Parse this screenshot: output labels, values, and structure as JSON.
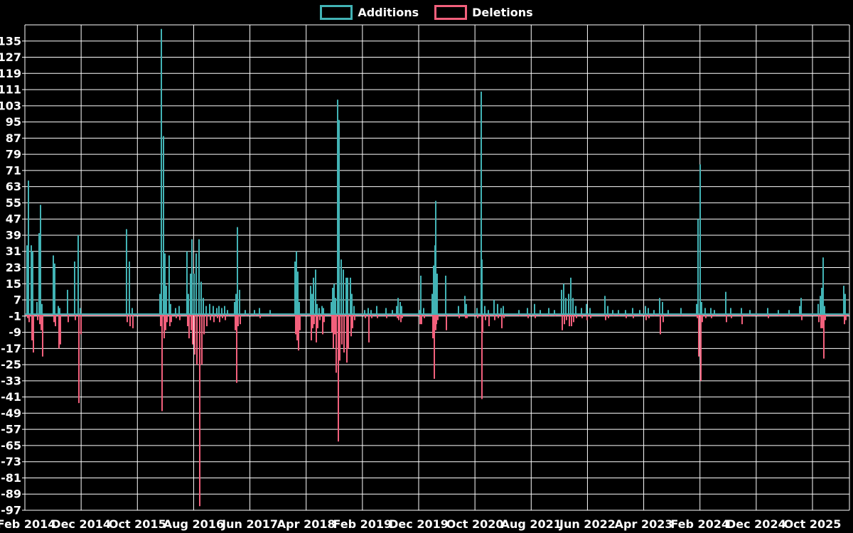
{
  "legend": {
    "additions_label": "Additions",
    "deletions_label": "Deletions"
  },
  "colors": {
    "background": "#000000",
    "grid": "#ffffff",
    "text": "#ffffff",
    "additions": "#42b3b5",
    "deletions": "#f2607c"
  },
  "chart_data": {
    "type": "line",
    "title": "",
    "legend_entries": [
      "Additions",
      "Deletions"
    ],
    "legend_position": "top-center",
    "grid": true,
    "y_axis": {
      "min": -97,
      "max": 143,
      "tick_step": 8,
      "baseline": 0
    },
    "y_ticks": [
      135,
      127,
      119,
      111,
      103,
      95,
      87,
      79,
      71,
      63,
      55,
      47,
      39,
      31,
      23,
      15,
      7,
      -1,
      -9,
      -17,
      -25,
      -33,
      -41,
      -49,
      -57,
      -65,
      -73,
      -81,
      -89,
      -97
    ],
    "x_tick_labels": [
      "Feb 2014",
      "Dec 2014",
      "Oct 2015",
      "Aug 2016",
      "Jun 2017",
      "Apr 2018",
      "Feb 2019",
      "Dec 2019",
      "Oct 2020",
      "Aug 2021",
      "Jun 2022",
      "Apr 2023",
      "Feb 2024",
      "Dec 2024",
      "Oct 2025"
    ],
    "x_unit": "pixel position along time axis (ticks every 10 months, Feb 2014 at x=35 ... Oct 2025 at x=1143)",
    "points_format": [
      "x_px",
      "additions",
      "deletions"
    ],
    "points": [
      [
        38,
        34,
        -2
      ],
      [
        40,
        66,
        -4
      ],
      [
        44,
        34,
        -13
      ],
      [
        46,
        31,
        -19
      ],
      [
        52,
        6,
        -3
      ],
      [
        55,
        40,
        -5
      ],
      [
        57,
        54,
        -8
      ],
      [
        59,
        5,
        -21
      ],
      [
        75,
        29,
        -4
      ],
      [
        77,
        25,
        -6
      ],
      [
        82,
        4,
        -17
      ],
      [
        84,
        3,
        -15
      ],
      [
        95,
        12,
        -4
      ],
      [
        105,
        26,
        -3
      ],
      [
        110,
        39,
        -44
      ],
      [
        113,
        3,
        -10
      ],
      [
        178,
        42,
        -4
      ],
      [
        182,
        26,
        -6
      ],
      [
        186,
        3,
        -7
      ],
      [
        225,
        10,
        -6
      ],
      [
        227,
        141,
        -48
      ],
      [
        230,
        88,
        -12
      ],
      [
        232,
        30,
        -8
      ],
      [
        234,
        14,
        -4
      ],
      [
        238,
        29,
        -6
      ],
      [
        240,
        5,
        -4
      ],
      [
        247,
        3,
        -2
      ],
      [
        252,
        4,
        -3
      ],
      [
        263,
        31,
        -6
      ],
      [
        265,
        10,
        -12
      ],
      [
        268,
        20,
        -8
      ],
      [
        270,
        37,
        -15
      ],
      [
        273,
        20,
        -20
      ],
      [
        276,
        30,
        -25
      ],
      [
        280,
        37,
        -95
      ],
      [
        283,
        16,
        -25
      ],
      [
        286,
        8,
        -10
      ],
      [
        290,
        4,
        -6
      ],
      [
        295,
        5,
        -3
      ],
      [
        300,
        4,
        -4
      ],
      [
        305,
        3,
        -2
      ],
      [
        308,
        4,
        -4
      ],
      [
        312,
        3,
        -2
      ],
      [
        316,
        4,
        -3
      ],
      [
        320,
        2,
        -1
      ],
      [
        330,
        6,
        -8
      ],
      [
        332,
        10,
        -34
      ],
      [
        334,
        43,
        -6
      ],
      [
        337,
        12,
        -5
      ],
      [
        345,
        2,
        -1
      ],
      [
        358,
        2,
        -1
      ],
      [
        365,
        3,
        -2
      ],
      [
        380,
        2,
        -1
      ],
      [
        415,
        26,
        -10
      ],
      [
        417,
        31,
        -13
      ],
      [
        419,
        21,
        -18
      ],
      [
        421,
        6,
        -8
      ],
      [
        437,
        14,
        -13
      ],
      [
        439,
        10,
        -7
      ],
      [
        441,
        18,
        -5
      ],
      [
        444,
        22,
        -14
      ],
      [
        446,
        5,
        -7
      ],
      [
        449,
        3,
        -3
      ],
      [
        453,
        4,
        -10
      ],
      [
        455,
        3,
        -4
      ],
      [
        466,
        6,
        -9
      ],
      [
        468,
        13,
        -17
      ],
      [
        470,
        15,
        -10
      ],
      [
        472,
        8,
        -29
      ],
      [
        475,
        106,
        -63
      ],
      [
        477,
        96,
        -23
      ],
      [
        480,
        27,
        -15
      ],
      [
        483,
        22,
        -19
      ],
      [
        487,
        18,
        -24
      ],
      [
        489,
        18,
        -17
      ],
      [
        493,
        18,
        -11
      ],
      [
        495,
        10,
        -7
      ],
      [
        498,
        4,
        -3
      ],
      [
        513,
        2,
        -2
      ],
      [
        518,
        3,
        -14
      ],
      [
        522,
        2,
        -2
      ],
      [
        530,
        4,
        -2
      ],
      [
        543,
        3,
        -2
      ],
      [
        552,
        2,
        -1
      ],
      [
        558,
        4,
        -2
      ],
      [
        560,
        8,
        -3
      ],
      [
        563,
        6,
        -4
      ],
      [
        565,
        4,
        -2
      ],
      [
        590,
        2,
        -5
      ],
      [
        592,
        19,
        -5
      ],
      [
        596,
        3,
        -2
      ],
      [
        608,
        10,
        -12
      ],
      [
        610,
        24,
        -32
      ],
      [
        612,
        34,
        -8
      ],
      [
        613,
        56,
        -5
      ],
      [
        615,
        20,
        -3
      ],
      [
        627,
        19,
        -8
      ],
      [
        645,
        4,
        -2
      ],
      [
        654,
        9,
        -2
      ],
      [
        656,
        5,
        -2
      ],
      [
        671,
        3,
        -2
      ],
      [
        677,
        110,
        -42
      ],
      [
        678,
        27,
        -9
      ],
      [
        682,
        4,
        -3
      ],
      [
        687,
        2,
        -6
      ],
      [
        695,
        7,
        -3
      ],
      [
        700,
        5,
        -2
      ],
      [
        705,
        3,
        -7
      ],
      [
        708,
        4,
        -2
      ],
      [
        730,
        2,
        -1
      ],
      [
        742,
        3,
        -2
      ],
      [
        752,
        5,
        -2
      ],
      [
        760,
        2,
        -1
      ],
      [
        772,
        3,
        -1
      ],
      [
        780,
        2,
        -1
      ],
      [
        790,
        12,
        -8
      ],
      [
        793,
        15,
        -5
      ],
      [
        796,
        8,
        -3
      ],
      [
        800,
        10,
        -6
      ],
      [
        803,
        18,
        -6
      ],
      [
        806,
        8,
        -4
      ],
      [
        810,
        4,
        -2
      ],
      [
        818,
        3,
        -2
      ],
      [
        825,
        5,
        -3
      ],
      [
        830,
        3,
        -2
      ],
      [
        851,
        9,
        -3
      ],
      [
        855,
        4,
        -2
      ],
      [
        862,
        2,
        -1
      ],
      [
        870,
        2,
        -1
      ],
      [
        880,
        2,
        -2
      ],
      [
        890,
        3,
        -2
      ],
      [
        900,
        2,
        -1
      ],
      [
        908,
        4,
        -3
      ],
      [
        912,
        3,
        -2
      ],
      [
        920,
        2,
        -1
      ],
      [
        928,
        8,
        -10
      ],
      [
        932,
        6,
        -4
      ],
      [
        940,
        2,
        -1
      ],
      [
        958,
        3,
        -1
      ],
      [
        980,
        5,
        -2
      ],
      [
        982,
        47,
        -21
      ],
      [
        985,
        74,
        -33
      ],
      [
        987,
        6,
        -4
      ],
      [
        992,
        3,
        -2
      ],
      [
        1000,
        3,
        -2
      ],
      [
        1005,
        2,
        -1
      ],
      [
        1021,
        11,
        -4
      ],
      [
        1028,
        3,
        -2
      ],
      [
        1043,
        3,
        -5
      ],
      [
        1055,
        2,
        -1
      ],
      [
        1080,
        3,
        -2
      ],
      [
        1095,
        2,
        -1
      ],
      [
        1110,
        2,
        -1
      ],
      [
        1125,
        4,
        -1
      ],
      [
        1127,
        8,
        -3
      ],
      [
        1151,
        5,
        -4
      ],
      [
        1154,
        9,
        -7
      ],
      [
        1156,
        13,
        -7
      ],
      [
        1158,
        28,
        -22
      ],
      [
        1160,
        4,
        -3
      ],
      [
        1187,
        14,
        -5
      ],
      [
        1189,
        10,
        -3
      ]
    ]
  }
}
